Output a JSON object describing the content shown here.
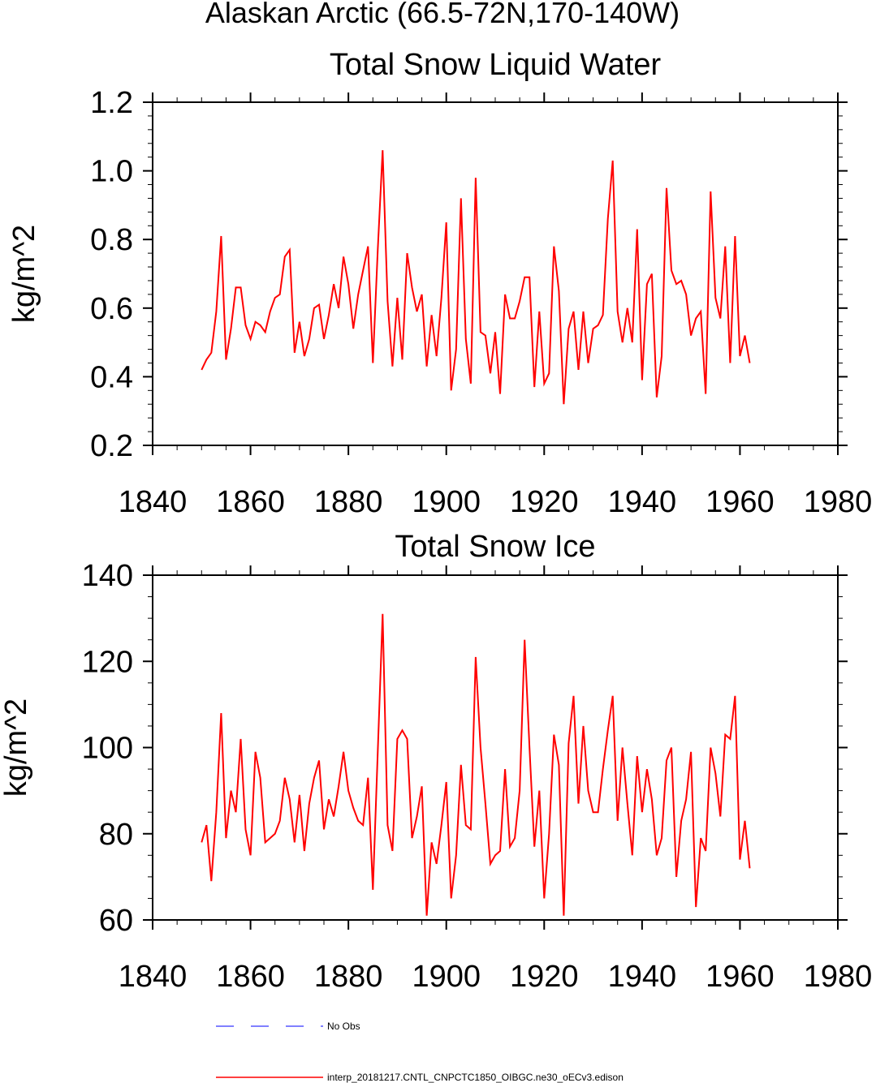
{
  "figure": {
    "title": "Alaskan Arctic (66.5-72N,170-140W)"
  },
  "chart_data": [
    {
      "type": "line",
      "title": "Total Snow Liquid Water",
      "xlabel": "",
      "ylabel": "kg/m^2",
      "xlim": [
        1840,
        1980
      ],
      "ylim": [
        0.2,
        1.2
      ],
      "x_ticks": [
        "1840",
        "1860",
        "1880",
        "1900",
        "1920",
        "1940",
        "1960",
        "1980"
      ],
      "x_tick_values": [
        1840,
        1860,
        1880,
        1900,
        1920,
        1940,
        1960,
        1980
      ],
      "y_ticks": [
        "0.2",
        "0.4",
        "0.6",
        "0.8",
        "1.0",
        "1.2"
      ],
      "y_tick_values": [
        0.2,
        0.4,
        0.6,
        0.8,
        1.0,
        1.2
      ],
      "grid": false,
      "series": [
        {
          "color": "#ff0000",
          "x_start": 1850,
          "x_step": 1,
          "values": [
            0.42,
            0.45,
            0.47,
            0.59,
            0.81,
            0.45,
            0.54,
            0.66,
            0.66,
            0.55,
            0.51,
            0.56,
            0.55,
            0.53,
            0.59,
            0.63,
            0.64,
            0.75,
            0.77,
            0.47,
            0.56,
            0.46,
            0.51,
            0.6,
            0.61,
            0.51,
            0.58,
            0.67,
            0.6,
            0.75,
            0.67,
            0.54,
            0.64,
            0.71,
            0.78,
            0.44,
            0.77,
            1.06,
            0.62,
            0.43,
            0.63,
            0.45,
            0.76,
            0.66,
            0.59,
            0.64,
            0.43,
            0.58,
            0.46,
            0.63,
            0.85,
            0.36,
            0.48,
            0.92,
            0.51,
            0.38,
            0.98,
            0.53,
            0.52,
            0.41,
            0.53,
            0.35,
            0.64,
            0.57,
            0.57,
            0.62,
            0.69,
            0.69,
            0.37,
            0.59,
            0.38,
            0.41,
            0.78,
            0.65,
            0.32,
            0.54,
            0.59,
            0.42,
            0.59,
            0.44,
            0.54,
            0.55,
            0.58,
            0.86,
            1.03,
            0.59,
            0.5,
            0.6,
            0.5,
            0.83,
            0.39,
            0.67,
            0.7,
            0.34,
            0.46,
            0.95,
            0.71,
            0.67,
            0.68,
            0.64,
            0.52,
            0.57,
            0.59,
            0.35,
            0.94,
            0.63,
            0.57,
            0.78,
            0.44,
            0.81,
            0.46,
            0.52,
            0.44
          ]
        }
      ]
    },
    {
      "type": "line",
      "title": "Total Snow Ice",
      "xlabel": "",
      "ylabel": "kg/m^2",
      "xlim": [
        1840,
        1980
      ],
      "ylim": [
        60,
        140
      ],
      "x_ticks": [
        "1840",
        "1860",
        "1880",
        "1900",
        "1920",
        "1940",
        "1960",
        "1980"
      ],
      "x_tick_values": [
        1840,
        1860,
        1880,
        1900,
        1920,
        1940,
        1960,
        1980
      ],
      "y_ticks": [
        "60",
        "80",
        "100",
        "120",
        "140"
      ],
      "y_tick_values": [
        60,
        80,
        100,
        120,
        140
      ],
      "grid": false,
      "series": [
        {
          "color": "#ff0000",
          "x_start": 1850,
          "x_step": 1,
          "values": [
            78,
            82,
            69,
            85,
            108,
            79,
            90,
            85,
            102,
            81,
            75,
            99,
            93,
            78,
            79,
            80,
            83,
            93,
            88,
            78,
            89,
            76,
            87,
            93,
            97,
            81,
            88,
            84,
            91,
            99,
            90,
            86,
            83,
            82,
            93,
            67,
            99,
            131,
            82,
            76,
            102,
            104,
            102,
            79,
            84,
            91,
            61,
            78,
            73,
            82,
            92,
            65,
            75,
            96,
            82,
            81,
            121,
            100,
            87,
            73,
            75,
            76,
            95,
            77,
            79,
            90,
            125,
            100,
            77,
            90,
            65,
            80,
            103,
            96,
            61,
            101,
            112,
            87,
            105,
            90,
            85,
            85,
            95,
            104,
            112,
            83,
            100,
            87,
            75,
            98,
            85,
            95,
            88,
            75,
            79,
            97,
            100,
            70,
            83,
            88,
            99,
            63,
            79,
            76,
            100,
            94,
            84,
            103,
            102,
            112,
            74,
            83,
            72
          ]
        }
      ]
    }
  ],
  "legend": {
    "placement": "bottom-left",
    "entries": [
      {
        "label": "No Obs",
        "color": "#0000ff",
        "style": "dashed"
      },
      {
        "label": "interp_20181217.CNTL_CNPCTC1850_OIBGC.ne30_oECv3.edison",
        "color": "#ff0000",
        "style": "solid"
      }
    ]
  }
}
